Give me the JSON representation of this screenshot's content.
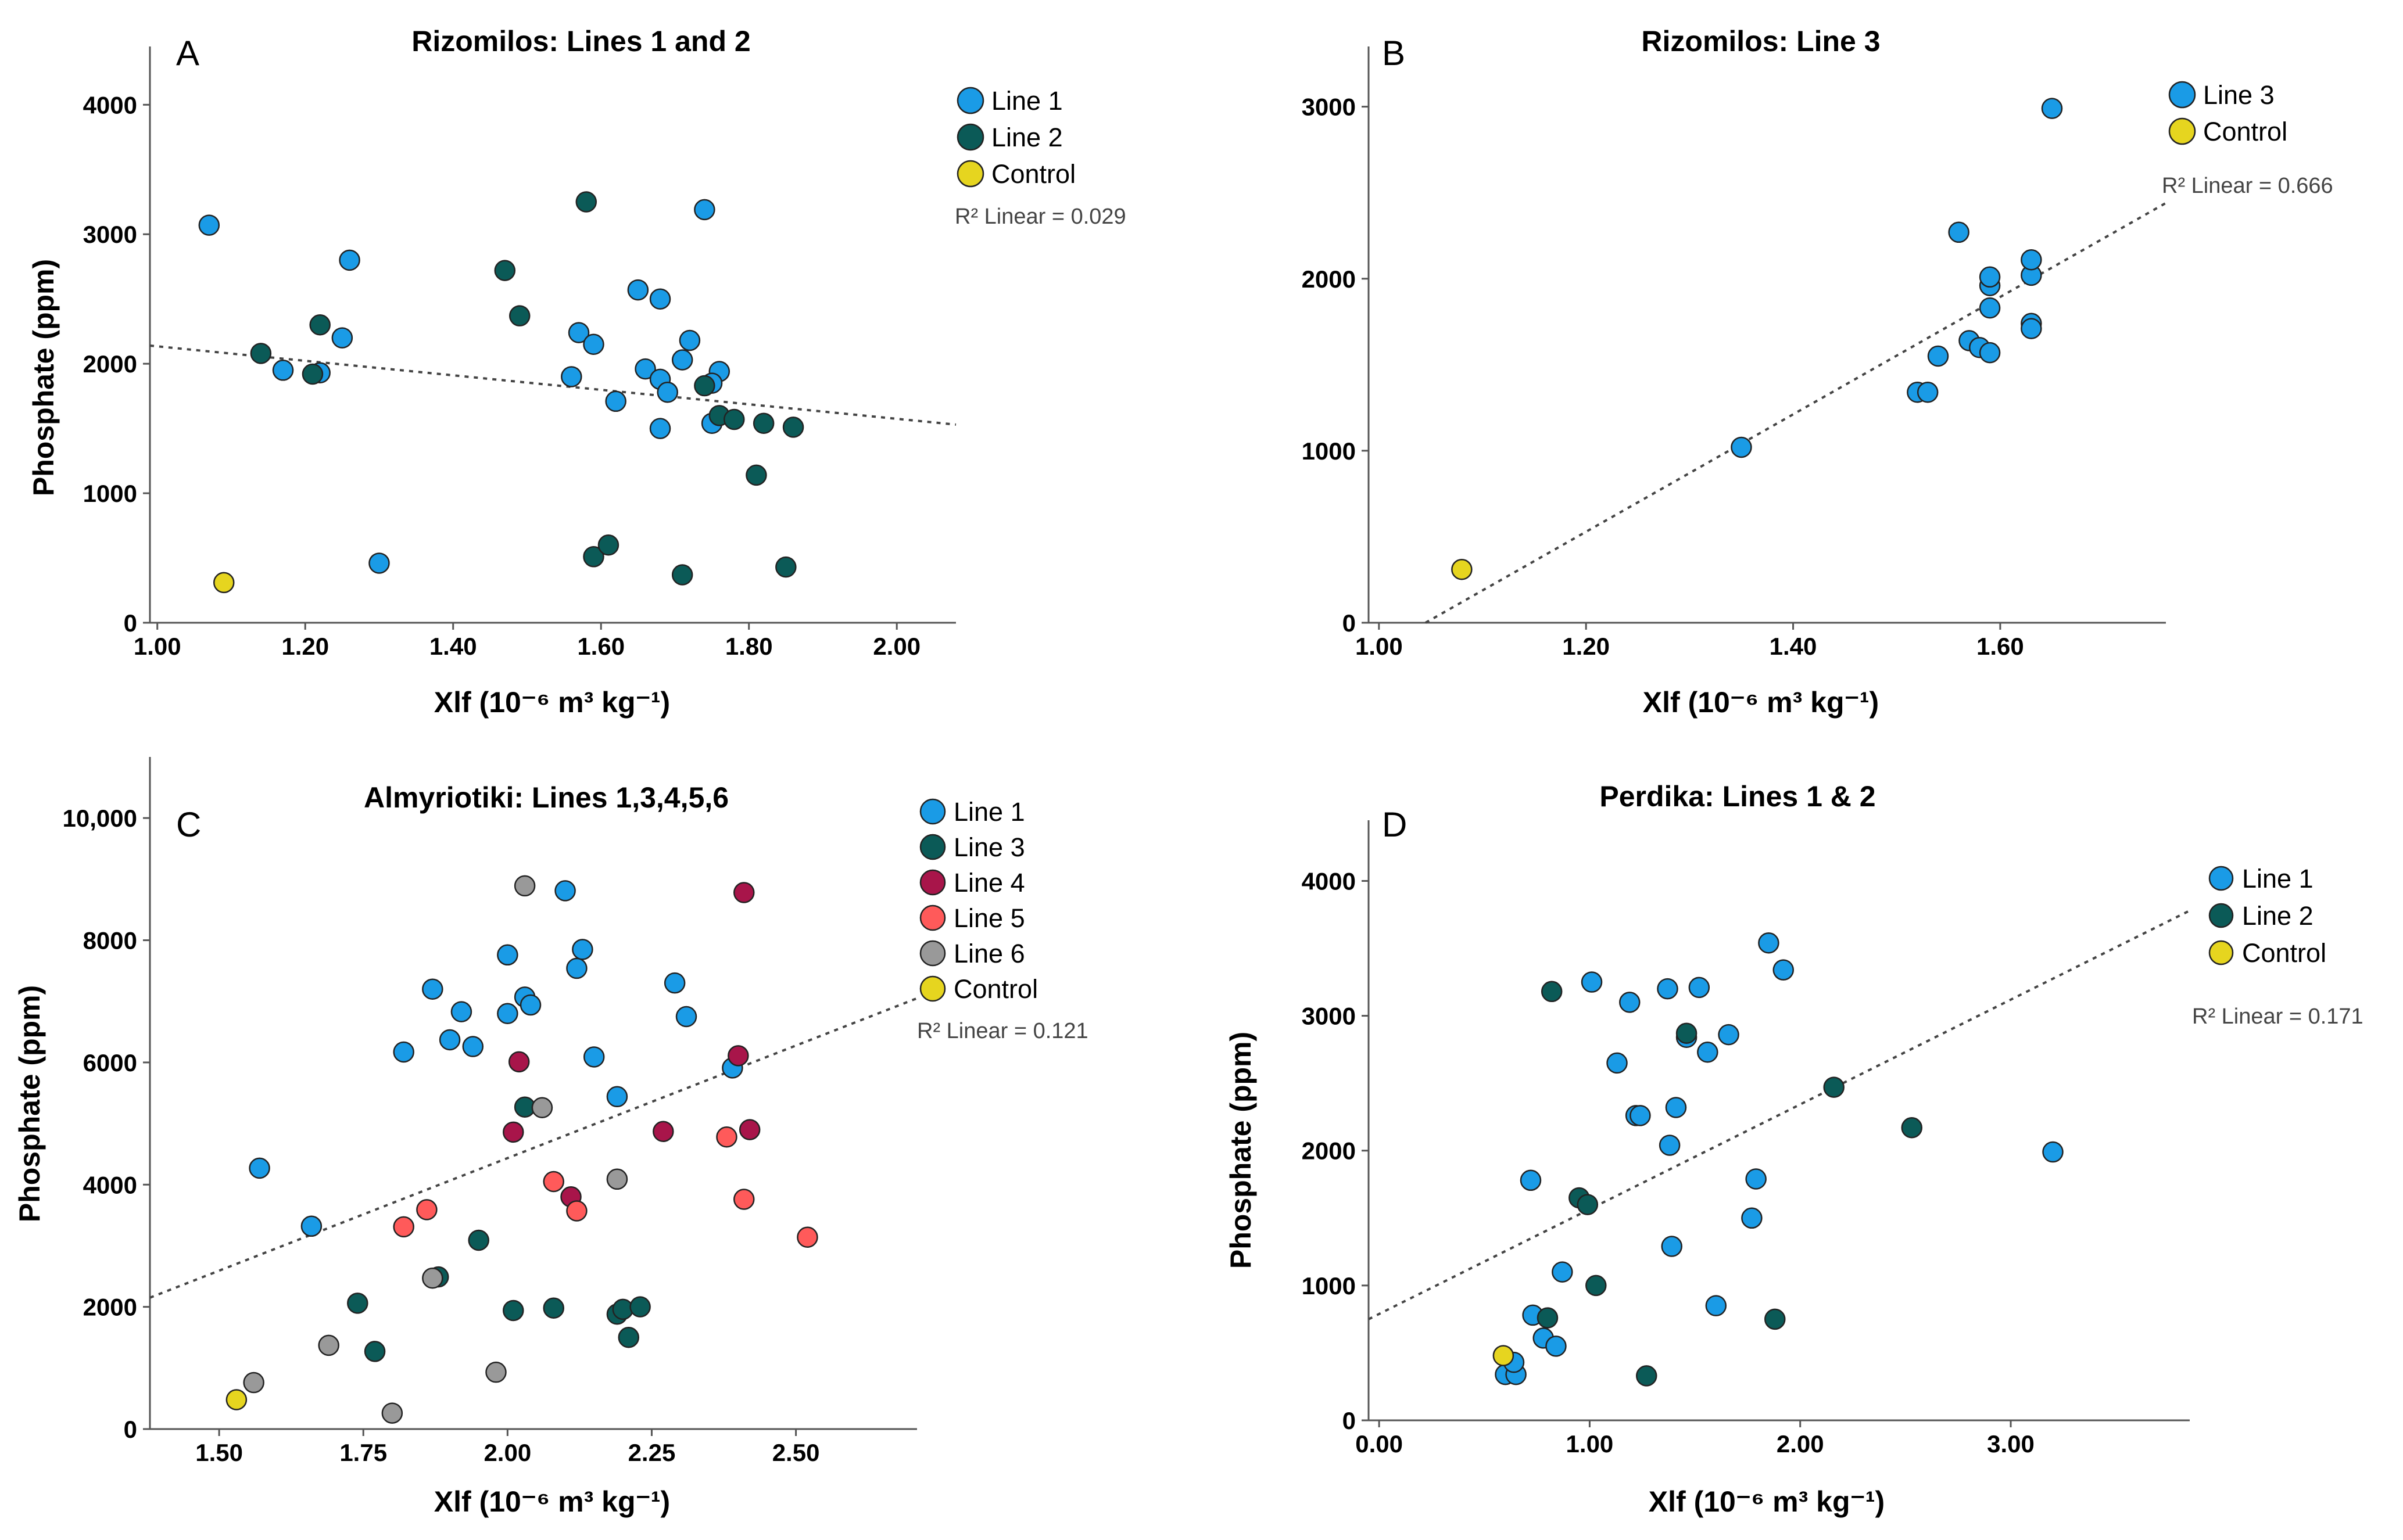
{
  "colors": {
    "Line 1": "#1a9be6",
    "Line 2": "#0b5a57",
    "Line 3": "#0b5a57",
    "Line 4": "#a8154a",
    "Line 5": "#ff5a5a",
    "Line 6": "#999999",
    "Control": "#e6d51f",
    "line3_blue": "#1a9be6",
    "axis": "#555555",
    "marker_edge": "#222222",
    "fit": "#444444"
  },
  "chart_data": [
    {
      "id": "A",
      "type": "scatter",
      "panel_letter": "A",
      "title": "Rizomilos: Lines 1 and 2",
      "xlabel": "Xlf (10⁻⁶ m³ kg⁻¹)",
      "ylabel": "Phosphate (ppm)",
      "xlim": [
        0.99,
        2.08
      ],
      "ylim": [
        0,
        4450
      ],
      "xticks": [
        1.0,
        1.2,
        1.4,
        1.6,
        1.8,
        2.0
      ],
      "xtick_labels": [
        "1.00",
        "1.20",
        "1.40",
        "1.60",
        "1.80",
        "2.00"
      ],
      "yticks": [
        0,
        1000,
        2000,
        3000,
        4000
      ],
      "ytick_labels": [
        "0",
        "1000",
        "2000",
        "3000",
        "4000"
      ],
      "r2_label": "R² Linear = 0.029",
      "fit": {
        "x": [
          0.99,
          2.08
        ],
        "y": [
          2140,
          1530
        ]
      },
      "legend": [
        "Line 1",
        "Line 2",
        "Control"
      ],
      "series": [
        {
          "name": "Line 1",
          "points": [
            [
              1.07,
              3070
            ],
            [
              1.17,
              1950
            ],
            [
              1.22,
              1930
            ],
            [
              1.25,
              2200
            ],
            [
              1.26,
              2800
            ],
            [
              1.3,
              460
            ],
            [
              1.56,
              1900
            ],
            [
              1.57,
              2240
            ],
            [
              1.59,
              2150
            ],
            [
              1.62,
              1710
            ],
            [
              1.65,
              2570
            ],
            [
              1.66,
              1960
            ],
            [
              1.68,
              2500
            ],
            [
              1.68,
              1880
            ],
            [
              1.68,
              1500
            ],
            [
              1.69,
              1780
            ],
            [
              1.71,
              2030
            ],
            [
              1.72,
              2180
            ],
            [
              1.74,
              3190
            ],
            [
              1.75,
              1540
            ],
            [
              1.76,
              1940
            ],
            [
              1.75,
              1850
            ]
          ]
        },
        {
          "name": "Line 2",
          "points": [
            [
              1.14,
              2080
            ],
            [
              1.21,
              1920
            ],
            [
              1.22,
              2300
            ],
            [
              1.47,
              2720
            ],
            [
              1.49,
              2370
            ],
            [
              1.58,
              3250
            ],
            [
              1.59,
              510
            ],
            [
              1.61,
              600
            ],
            [
              1.71,
              370
            ],
            [
              1.74,
              1830
            ],
            [
              1.76,
              1600
            ],
            [
              1.78,
              1570
            ],
            [
              1.81,
              1140
            ],
            [
              1.82,
              1540
            ],
            [
              1.85,
              430
            ],
            [
              1.86,
              1510
            ]
          ]
        },
        {
          "name": "Control",
          "points": [
            [
              1.09,
              310
            ]
          ]
        }
      ]
    },
    {
      "id": "B",
      "type": "scatter",
      "panel_letter": "B",
      "title": "Rizomilos: Line 3",
      "xlabel": "Xlf (10⁻⁶ m³ kg⁻¹)",
      "ylabel": "",
      "xlim": [
        0.99,
        1.76
      ],
      "ylim": [
        0,
        3350
      ],
      "xticks": [
        1.0,
        1.2,
        1.4,
        1.6
      ],
      "xtick_labels": [
        "1.00",
        "1.20",
        "1.40",
        "1.60"
      ],
      "yticks": [
        0,
        1000,
        2000,
        3000
      ],
      "ytick_labels": [
        "0",
        "1000",
        "2000",
        "3000"
      ],
      "r2_label": "R² Linear = 0.666",
      "fit": {
        "x": [
          1.045,
          1.76
        ],
        "y": [
          0,
          2440
        ]
      },
      "legend": [
        "Line 3",
        "Control"
      ],
      "series": [
        {
          "name": "Line 3",
          "color_key": "line3_blue",
          "points": [
            [
              1.35,
              1020
            ],
            [
              1.52,
              1340
            ],
            [
              1.53,
              1340
            ],
            [
              1.54,
              1550
            ],
            [
              1.56,
              2270
            ],
            [
              1.57,
              1640
            ],
            [
              1.58,
              1600
            ],
            [
              1.59,
              1570
            ],
            [
              1.59,
              1830
            ],
            [
              1.59,
              1960
            ],
            [
              1.59,
              2010
            ],
            [
              1.63,
              1740
            ],
            [
              1.63,
              1710
            ],
            [
              1.63,
              2020
            ],
            [
              1.63,
              2110
            ],
            [
              1.65,
              2990
            ]
          ]
        },
        {
          "name": "Control",
          "points": [
            [
              1.08,
              310
            ]
          ]
        }
      ]
    },
    {
      "id": "C",
      "type": "scatter",
      "panel_letter": "C",
      "title": "Almyriotiki: Lines 1,3,4,5,6",
      "xlabel": "Xlf (10⁻⁶ m³ kg⁻¹)",
      "ylabel": "Phosphate (ppm)",
      "xlim": [
        1.38,
        2.71
      ],
      "ylim": [
        0,
        11000
      ],
      "xticks": [
        1.5,
        1.75,
        2.0,
        2.25,
        2.5
      ],
      "xtick_labels": [
        "1.50",
        "1.75",
        "2.00",
        "2.25",
        "2.50"
      ],
      "yticks": [
        0,
        2000,
        4000,
        6000,
        8000,
        10000
      ],
      "ytick_labels": [
        "0",
        "2000",
        "4000",
        "6000",
        "8000",
        "10,000"
      ],
      "r2_label": "R² Linear = 0.121",
      "fit": {
        "x": [
          1.38,
          2.71
        ],
        "y": [
          2150,
          7050
        ]
      },
      "legend": [
        "Line 1",
        "Line 3",
        "Line 4",
        "Line 5",
        "Line 6",
        "Control"
      ],
      "series": [
        {
          "name": "Line 1",
          "points": [
            [
              1.57,
              4270
            ],
            [
              1.66,
              3320
            ],
            [
              1.82,
              6170
            ],
            [
              1.87,
              7200
            ],
            [
              1.9,
              6370
            ],
            [
              1.92,
              6830
            ],
            [
              1.94,
              6260
            ],
            [
              2.0,
              7760
            ],
            [
              2.0,
              6800
            ],
            [
              2.03,
              7070
            ],
            [
              2.04,
              6940
            ],
            [
              2.1,
              8810
            ],
            [
              2.12,
              7540
            ],
            [
              2.13,
              7850
            ],
            [
              2.15,
              6090
            ],
            [
              2.19,
              5440
            ],
            [
              2.29,
              7300
            ],
            [
              2.31,
              6750
            ],
            [
              2.39,
              5910
            ]
          ]
        },
        {
          "name": "Line 3",
          "points": [
            [
              1.74,
              2060
            ],
            [
              1.77,
              1270
            ],
            [
              1.88,
              2490
            ],
            [
              1.95,
              3090
            ],
            [
              2.01,
              1940
            ],
            [
              2.03,
              5270
            ],
            [
              2.08,
              1980
            ],
            [
              2.19,
              1880
            ],
            [
              2.2,
              1960
            ],
            [
              2.21,
              1500
            ],
            [
              2.23,
              2000
            ]
          ]
        },
        {
          "name": "Line 4",
          "points": [
            [
              2.01,
              4860
            ],
            [
              2.02,
              6010
            ],
            [
              2.11,
              3800
            ],
            [
              2.27,
              4870
            ],
            [
              2.4,
              6110
            ],
            [
              2.41,
              8780
            ],
            [
              2.42,
              4900
            ]
          ]
        },
        {
          "name": "Line 5",
          "points": [
            [
              1.82,
              3310
            ],
            [
              1.86,
              3590
            ],
            [
              2.08,
              4050
            ],
            [
              2.12,
              3570
            ],
            [
              2.38,
              4780
            ],
            [
              2.41,
              3760
            ],
            [
              2.52,
              3140
            ]
          ]
        },
        {
          "name": "Line 6",
          "points": [
            [
              1.56,
              760
            ],
            [
              1.69,
              1370
            ],
            [
              1.8,
              260
            ],
            [
              1.87,
              2470
            ],
            [
              1.98,
              930
            ],
            [
              2.03,
              8890
            ],
            [
              2.06,
              5260
            ],
            [
              2.19,
              4090
            ]
          ]
        },
        {
          "name": "Control",
          "points": [
            [
              1.53,
              480
            ]
          ]
        }
      ]
    },
    {
      "id": "D",
      "type": "scatter",
      "panel_letter": "D",
      "title": "Perdika: Lines 1 & 2",
      "xlabel": "Xlf (10⁻⁶ m³ kg⁻¹)",
      "ylabel": "Phosphate (ppm)",
      "xlim": [
        -0.05,
        3.85
      ],
      "ylim": [
        0,
        4450
      ],
      "xticks": [
        0,
        1,
        2,
        3
      ],
      "xtick_labels": [
        "0.00",
        "1.00",
        "2.00",
        "3.00"
      ],
      "yticks": [
        0,
        1000,
        2000,
        3000,
        4000
      ],
      "ytick_labels": [
        "0",
        "1000",
        "2000",
        "3000",
        "4000"
      ],
      "r2_label": "R² Linear = 0.171",
      "fit": {
        "x": [
          -0.05,
          3.85
        ],
        "y": [
          750,
          3780
        ]
      },
      "legend": [
        "Line 1",
        "Line 2",
        "Control"
      ],
      "series": [
        {
          "name": "Line 1",
          "points": [
            [
              0.6,
              340
            ],
            [
              0.65,
              340
            ],
            [
              0.64,
              430
            ],
            [
              0.72,
              1780
            ],
            [
              0.73,
              780
            ],
            [
              0.78,
              610
            ],
            [
              0.84,
              550
            ],
            [
              0.87,
              1100
            ],
            [
              1.01,
              3250
            ],
            [
              1.13,
              2650
            ],
            [
              1.19,
              3100
            ],
            [
              1.22,
              2260
            ],
            [
              1.24,
              2260
            ],
            [
              1.37,
              3200
            ],
            [
              1.38,
              2040
            ],
            [
              1.39,
              1290
            ],
            [
              1.41,
              2320
            ],
            [
              1.46,
              2840
            ],
            [
              1.52,
              3210
            ],
            [
              1.56,
              2730
            ],
            [
              1.6,
              850
            ],
            [
              1.66,
              2860
            ],
            [
              1.77,
              1500
            ],
            [
              1.79,
              1790
            ],
            [
              1.85,
              3540
            ],
            [
              1.92,
              3340
            ],
            [
              3.2,
              1990
            ]
          ]
        },
        {
          "name": "Line 2",
          "points": [
            [
              0.8,
              760
            ],
            [
              0.82,
              3180
            ],
            [
              0.95,
              1650
            ],
            [
              0.99,
              1600
            ],
            [
              1.03,
              1000
            ],
            [
              1.27,
              330
            ],
            [
              1.46,
              2870
            ],
            [
              1.88,
              750
            ],
            [
              2.16,
              2470
            ],
            [
              2.53,
              2170
            ]
          ]
        },
        {
          "name": "Control",
          "points": [
            [
              0.59,
              480
            ]
          ]
        }
      ]
    }
  ]
}
